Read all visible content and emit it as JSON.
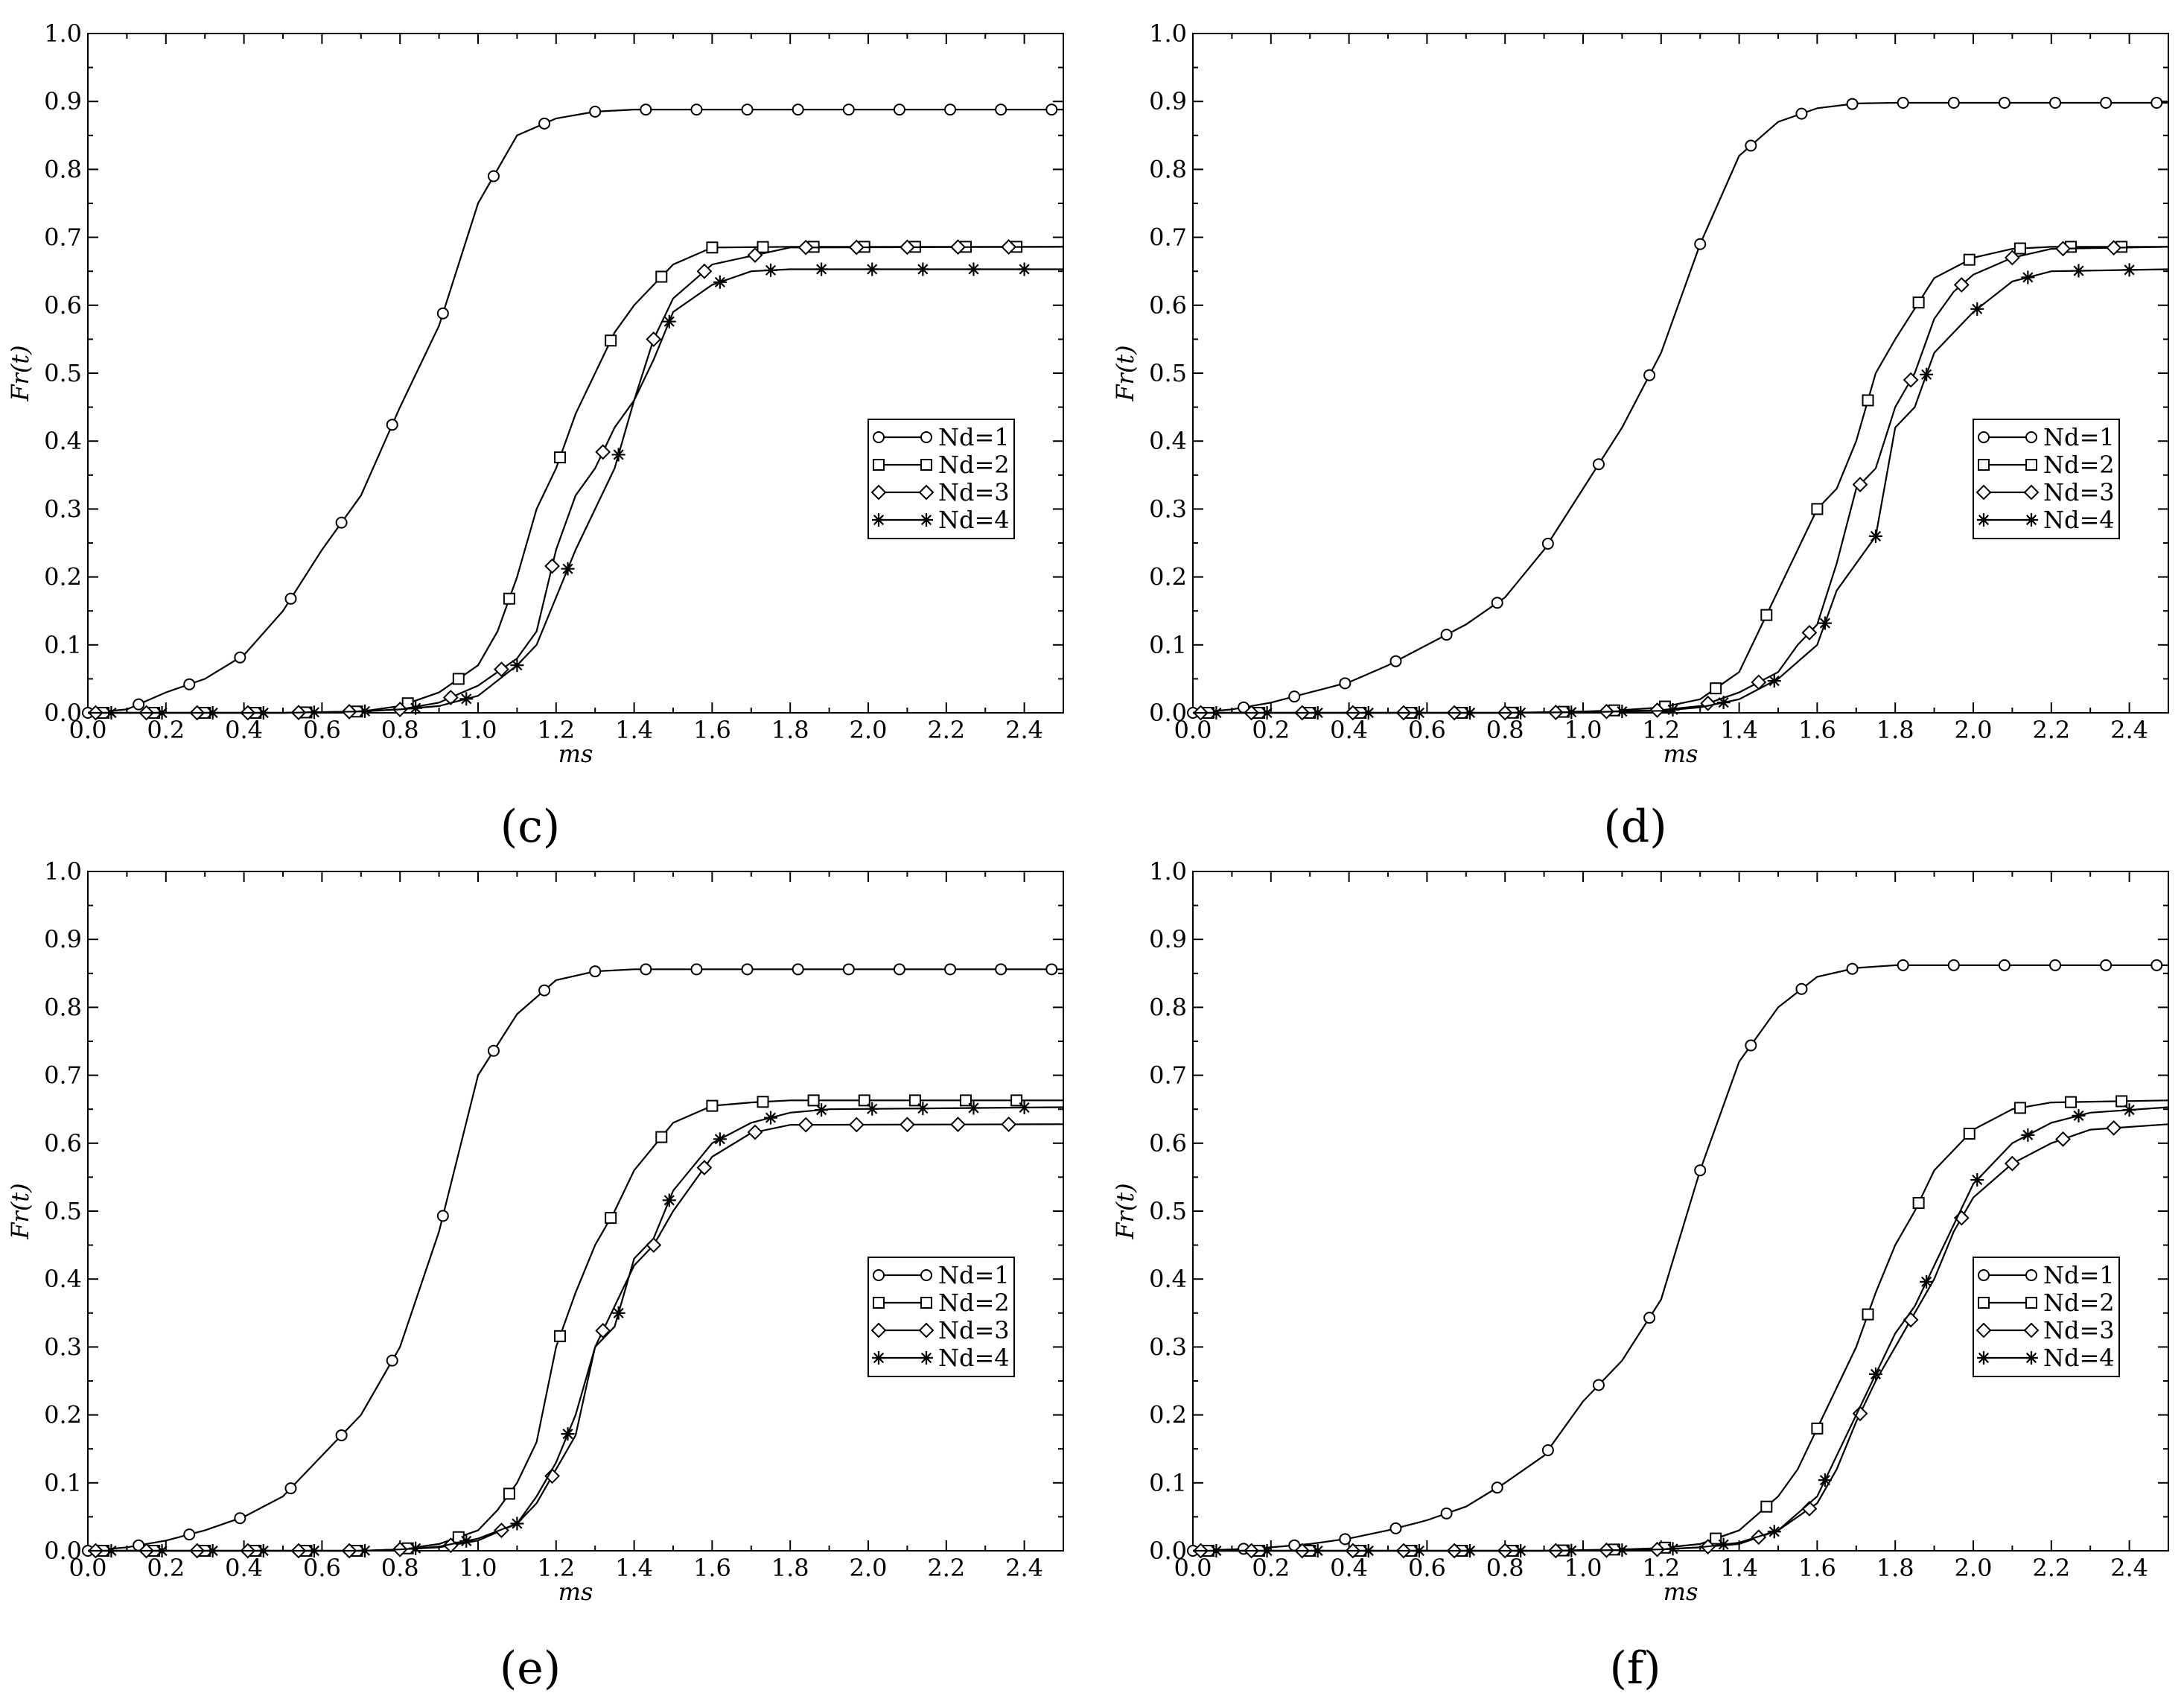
{
  "figure_title": "",
  "chart_data": [
    {
      "type": "line",
      "panel_label": "(c)",
      "xlabel": "ms",
      "ylabel": "Fr(t)",
      "xlim": [
        0,
        2.5
      ],
      "ylim": [
        0,
        1.0
      ],
      "x_ticks": [
        "0.0",
        "0.2",
        "0.4",
        "0.6",
        "0.8",
        "1.0",
        "1.2",
        "1.4",
        "1.6",
        "1.8",
        "2.0",
        "2.2",
        "2.4"
      ],
      "y_ticks": [
        "0.0",
        "0.1",
        "0.2",
        "0.3",
        "0.4",
        "0.5",
        "0.6",
        "0.7",
        "0.8",
        "0.9",
        "1.0"
      ],
      "legend_position": "center-right",
      "series": [
        {
          "name": "Nd=1",
          "marker": "circle",
          "x": [
            0,
            0.1,
            0.2,
            0.3,
            0.4,
            0.5,
            0.6,
            0.7,
            0.8,
            0.9,
            1.0,
            1.1,
            1.2,
            1.3,
            1.4,
            1.6,
            2.0,
            2.5
          ],
          "y": [
            0,
            0.005,
            0.03,
            0.05,
            0.085,
            0.15,
            0.24,
            0.32,
            0.45,
            0.57,
            0.75,
            0.85,
            0.875,
            0.885,
            0.888,
            0.888,
            0.888,
            0.888
          ]
        },
        {
          "name": "Nd=2",
          "marker": "square",
          "x": [
            0,
            0.5,
            0.7,
            0.8,
            0.9,
            1.0,
            1.05,
            1.1,
            1.15,
            1.2,
            1.25,
            1.3,
            1.35,
            1.4,
            1.5,
            1.6,
            1.8,
            2.5
          ],
          "y": [
            0,
            0,
            0.002,
            0.01,
            0.03,
            0.07,
            0.12,
            0.2,
            0.3,
            0.36,
            0.44,
            0.5,
            0.56,
            0.6,
            0.66,
            0.685,
            0.686,
            0.686
          ]
        },
        {
          "name": "Nd=3",
          "marker": "diamond",
          "x": [
            0,
            0.5,
            0.7,
            0.8,
            0.9,
            1.0,
            1.1,
            1.15,
            1.2,
            1.25,
            1.3,
            1.35,
            1.4,
            1.45,
            1.5,
            1.6,
            1.8,
            2.5
          ],
          "y": [
            0,
            0,
            0.002,
            0.005,
            0.015,
            0.04,
            0.08,
            0.12,
            0.24,
            0.32,
            0.36,
            0.42,
            0.46,
            0.55,
            0.61,
            0.66,
            0.685,
            0.686
          ]
        },
        {
          "name": "Nd=4",
          "marker": "star",
          "x": [
            0,
            0.5,
            0.7,
            0.8,
            0.9,
            1.0,
            1.1,
            1.15,
            1.2,
            1.25,
            1.3,
            1.35,
            1.4,
            1.45,
            1.5,
            1.6,
            1.7,
            1.8,
            2.5
          ],
          "y": [
            0,
            0,
            0.002,
            0.005,
            0.01,
            0.025,
            0.07,
            0.1,
            0.17,
            0.24,
            0.3,
            0.36,
            0.46,
            0.52,
            0.59,
            0.63,
            0.65,
            0.653,
            0.653
          ]
        }
      ]
    },
    {
      "type": "line",
      "panel_label": "(d)",
      "xlabel": "ms",
      "ylabel": "Fr(t)",
      "xlim": [
        0,
        2.5
      ],
      "ylim": [
        0,
        1.0
      ],
      "x_ticks": [
        "0.0",
        "0.2",
        "0.4",
        "0.6",
        "0.8",
        "1.0",
        "1.2",
        "1.4",
        "1.6",
        "1.8",
        "2.0",
        "2.2",
        "2.4"
      ],
      "y_ticks": [
        "0.0",
        "0.1",
        "0.2",
        "0.3",
        "0.4",
        "0.5",
        "0.6",
        "0.7",
        "0.8",
        "0.9",
        "1.0"
      ],
      "legend_position": "center-right",
      "series": [
        {
          "name": "Nd=1",
          "marker": "circle",
          "x": [
            0,
            0.1,
            0.2,
            0.3,
            0.4,
            0.5,
            0.6,
            0.7,
            0.8,
            0.9,
            1.0,
            1.1,
            1.2,
            1.3,
            1.4,
            1.5,
            1.6,
            1.7,
            1.8,
            2.0,
            2.5
          ],
          "y": [
            0,
            0.005,
            0.015,
            0.03,
            0.045,
            0.07,
            0.1,
            0.13,
            0.17,
            0.24,
            0.33,
            0.42,
            0.53,
            0.69,
            0.82,
            0.87,
            0.89,
            0.897,
            0.898,
            0.898,
            0.898
          ]
        },
        {
          "name": "Nd=2",
          "marker": "square",
          "x": [
            0,
            0.8,
            1.0,
            1.1,
            1.2,
            1.3,
            1.4,
            1.45,
            1.5,
            1.55,
            1.6,
            1.65,
            1.7,
            1.75,
            1.8,
            1.9,
            2.0,
            2.1,
            2.2,
            2.5
          ],
          "y": [
            0,
            0,
            0.002,
            0.004,
            0.008,
            0.02,
            0.06,
            0.12,
            0.18,
            0.24,
            0.3,
            0.33,
            0.4,
            0.5,
            0.55,
            0.64,
            0.67,
            0.683,
            0.686,
            0.686
          ]
        },
        {
          "name": "Nd=3",
          "marker": "diamond",
          "x": [
            0,
            0.8,
            1.0,
            1.2,
            1.3,
            1.4,
            1.5,
            1.55,
            1.6,
            1.65,
            1.7,
            1.75,
            1.8,
            1.85,
            1.9,
            1.95,
            2.0,
            2.1,
            2.2,
            2.5
          ],
          "y": [
            0,
            0,
            0.001,
            0.004,
            0.01,
            0.03,
            0.06,
            0.1,
            0.13,
            0.22,
            0.33,
            0.36,
            0.45,
            0.5,
            0.58,
            0.62,
            0.645,
            0.67,
            0.683,
            0.686
          ]
        },
        {
          "name": "Nd=4",
          "marker": "star",
          "x": [
            0,
            0.8,
            1.0,
            1.2,
            1.3,
            1.4,
            1.5,
            1.6,
            1.65,
            1.7,
            1.75,
            1.8,
            1.85,
            1.9,
            1.95,
            2.0,
            2.1,
            2.2,
            2.5
          ],
          "y": [
            0,
            0,
            0.001,
            0.003,
            0.008,
            0.02,
            0.05,
            0.1,
            0.18,
            0.22,
            0.26,
            0.42,
            0.45,
            0.53,
            0.56,
            0.59,
            0.635,
            0.65,
            0.653
          ]
        }
      ]
    },
    {
      "type": "line",
      "panel_label": "(e)",
      "xlabel": "ms",
      "ylabel": "Fr(t)",
      "xlim": [
        0,
        2.5
      ],
      "ylim": [
        0,
        1.0
      ],
      "x_ticks": [
        "0.0",
        "0.2",
        "0.4",
        "0.6",
        "0.8",
        "1.0",
        "1.2",
        "1.4",
        "1.6",
        "1.8",
        "2.0",
        "2.2",
        "2.4"
      ],
      "y_ticks": [
        "0.0",
        "0.1",
        "0.2",
        "0.3",
        "0.4",
        "0.5",
        "0.6",
        "0.7",
        "0.8",
        "0.9",
        "1.0"
      ],
      "legend_position": "center-right",
      "series": [
        {
          "name": "Nd=1",
          "marker": "circle",
          "x": [
            0,
            0.1,
            0.2,
            0.3,
            0.4,
            0.5,
            0.6,
            0.7,
            0.8,
            0.9,
            1.0,
            1.1,
            1.2,
            1.3,
            1.4,
            1.6,
            2.0,
            2.5
          ],
          "y": [
            0,
            0.005,
            0.015,
            0.03,
            0.05,
            0.08,
            0.14,
            0.2,
            0.3,
            0.47,
            0.7,
            0.79,
            0.84,
            0.853,
            0.856,
            0.856,
            0.856,
            0.856
          ]
        },
        {
          "name": "Nd=2",
          "marker": "square",
          "x": [
            0,
            0.7,
            0.8,
            0.9,
            1.0,
            1.05,
            1.1,
            1.15,
            1.2,
            1.25,
            1.3,
            1.35,
            1.4,
            1.5,
            1.6,
            1.7,
            1.8,
            2.5
          ],
          "y": [
            0,
            0,
            0.002,
            0.01,
            0.03,
            0.06,
            0.1,
            0.16,
            0.3,
            0.38,
            0.45,
            0.5,
            0.56,
            0.63,
            0.655,
            0.66,
            0.663,
            0.663
          ]
        },
        {
          "name": "Nd=3",
          "marker": "diamond",
          "x": [
            0,
            0.7,
            0.8,
            0.9,
            1.0,
            1.1,
            1.15,
            1.2,
            1.25,
            1.3,
            1.35,
            1.4,
            1.45,
            1.5,
            1.6,
            1.7,
            1.8,
            2.5
          ],
          "y": [
            0,
            0,
            0.002,
            0.005,
            0.015,
            0.04,
            0.07,
            0.12,
            0.17,
            0.3,
            0.36,
            0.42,
            0.45,
            0.5,
            0.58,
            0.615,
            0.627,
            0.628
          ]
        },
        {
          "name": "Nd=4",
          "marker": "star",
          "x": [
            0,
            0.7,
            0.8,
            0.9,
            1.0,
            1.1,
            1.15,
            1.2,
            1.25,
            1.3,
            1.35,
            1.4,
            1.45,
            1.5,
            1.6,
            1.7,
            1.8,
            1.9,
            2.5
          ],
          "y": [
            0,
            0,
            0.002,
            0.006,
            0.018,
            0.04,
            0.08,
            0.13,
            0.2,
            0.3,
            0.33,
            0.43,
            0.46,
            0.53,
            0.6,
            0.63,
            0.645,
            0.65,
            0.653
          ]
        }
      ]
    },
    {
      "type": "line",
      "panel_label": "(f)",
      "xlabel": "ms",
      "ylabel": "Fr(t)",
      "xlim": [
        0,
        2.5
      ],
      "ylim": [
        0,
        1.0
      ],
      "x_ticks": [
        "0.0",
        "0.2",
        "0.4",
        "0.6",
        "0.8",
        "1.0",
        "1.2",
        "1.4",
        "1.6",
        "1.8",
        "2.0",
        "2.2",
        "2.4"
      ],
      "y_ticks": [
        "0.0",
        "0.1",
        "0.2",
        "0.3",
        "0.4",
        "0.5",
        "0.6",
        "0.7",
        "0.8",
        "0.9",
        "1.0"
      ],
      "legend_position": "center-right",
      "series": [
        {
          "name": "Nd=1",
          "marker": "circle",
          "x": [
            0,
            0.1,
            0.2,
            0.3,
            0.4,
            0.5,
            0.6,
            0.7,
            0.8,
            0.9,
            1.0,
            1.1,
            1.2,
            1.3,
            1.4,
            1.5,
            1.6,
            1.7,
            1.8,
            2.0,
            2.5
          ],
          "y": [
            0,
            0.002,
            0.005,
            0.01,
            0.018,
            0.03,
            0.045,
            0.065,
            0.1,
            0.14,
            0.22,
            0.28,
            0.37,
            0.56,
            0.72,
            0.8,
            0.845,
            0.858,
            0.862,
            0.862,
            0.862
          ]
        },
        {
          "name": "Nd=2",
          "marker": "square",
          "x": [
            0,
            0.9,
            1.1,
            1.2,
            1.3,
            1.4,
            1.5,
            1.55,
            1.6,
            1.65,
            1.7,
            1.75,
            1.8,
            1.85,
            1.9,
            2.0,
            2.1,
            2.2,
            2.5
          ],
          "y": [
            0,
            0,
            0.002,
            0.004,
            0.01,
            0.03,
            0.08,
            0.12,
            0.18,
            0.24,
            0.3,
            0.38,
            0.45,
            0.5,
            0.56,
            0.62,
            0.65,
            0.66,
            0.663
          ]
        },
        {
          "name": "Nd=3",
          "marker": "diamond",
          "x": [
            0,
            0.9,
            1.1,
            1.2,
            1.3,
            1.4,
            1.5,
            1.6,
            1.65,
            1.7,
            1.75,
            1.8,
            1.85,
            1.9,
            1.95,
            2.0,
            2.1,
            2.2,
            2.3,
            2.5
          ],
          "y": [
            0,
            0,
            0.001,
            0.002,
            0.005,
            0.01,
            0.03,
            0.07,
            0.12,
            0.19,
            0.25,
            0.3,
            0.35,
            0.4,
            0.47,
            0.52,
            0.57,
            0.6,
            0.62,
            0.628
          ]
        },
        {
          "name": "Nd=4",
          "marker": "star",
          "x": [
            0,
            0.9,
            1.1,
            1.2,
            1.3,
            1.4,
            1.5,
            1.6,
            1.65,
            1.7,
            1.75,
            1.8,
            1.85,
            1.9,
            1.95,
            2.0,
            2.1,
            2.2,
            2.3,
            2.5
          ],
          "y": [
            0,
            0,
            0.001,
            0.002,
            0.005,
            0.012,
            0.03,
            0.08,
            0.14,
            0.2,
            0.26,
            0.32,
            0.36,
            0.42,
            0.48,
            0.54,
            0.6,
            0.63,
            0.645,
            0.653
          ]
        }
      ]
    }
  ]
}
